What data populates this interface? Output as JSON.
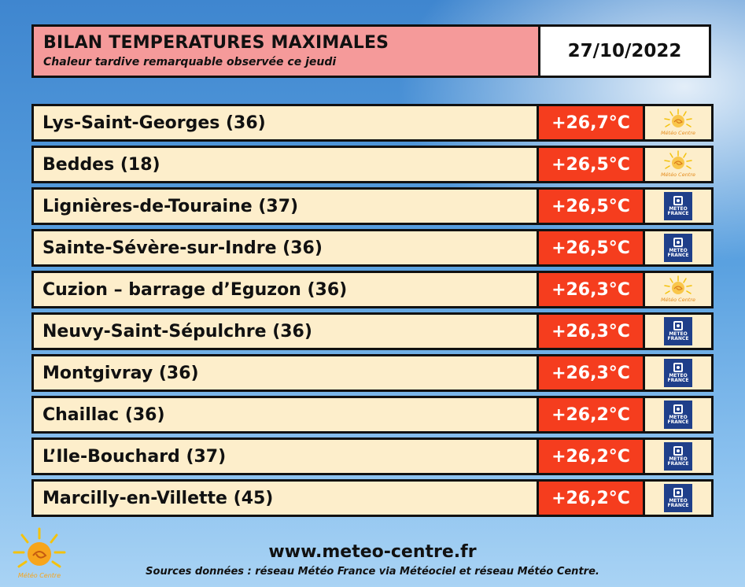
{
  "header": {
    "title": "BILAN TEMPERATURES MAXIMALES",
    "subtitle": "Chaleur tardive remarquable observée ce jeudi",
    "date": "27/10/2022"
  },
  "rows": [
    {
      "city": "Lys-Saint-Georges (36)",
      "temp": "+26,7°C",
      "source": "meteo-centre"
    },
    {
      "city": "Beddes (18)",
      "temp": "+26,5°C",
      "source": "meteo-centre"
    },
    {
      "city": "Lignières-de-Touraine (37)",
      "temp": "+26,5°C",
      "source": "meteo-france"
    },
    {
      "city": "Sainte-Sévère-sur-Indre (36)",
      "temp": "+26,5°C",
      "source": "meteo-france"
    },
    {
      "city": "Cuzion – barrage d’Eguzon (36)",
      "temp": "+26,3°C",
      "source": "meteo-centre"
    },
    {
      "city": "Neuvy-Saint-Sépulchre (36)",
      "temp": "+26,3°C",
      "source": "meteo-france"
    },
    {
      "city": "Montgivray (36)",
      "temp": "+26,3°C",
      "source": "meteo-france"
    },
    {
      "city": "Chaillac (36)",
      "temp": "+26,2°C",
      "source": "meteo-france"
    },
    {
      "city": "L’Ile-Bouchard (37)",
      "temp": "+26,2°C",
      "source": "meteo-france"
    },
    {
      "city": "Marcilly-en-Villette (45)",
      "temp": "+26,2°C",
      "source": "meteo-france"
    }
  ],
  "logos": {
    "meteo_centre": "Météo Centre",
    "meteo_france_line1": "METEO",
    "meteo_france_line2": "FRANCE"
  },
  "footer": {
    "url": "www.meteo-centre.fr",
    "sources": "Sources données : réseau Météo France via Météociel et réseau Météo Centre."
  },
  "colors": {
    "header_bg": "#f59a9a",
    "row_bg": "#fdeecb",
    "temp_bg": "#f53d1e",
    "meteo_france_blue": "#1f3f8a"
  }
}
